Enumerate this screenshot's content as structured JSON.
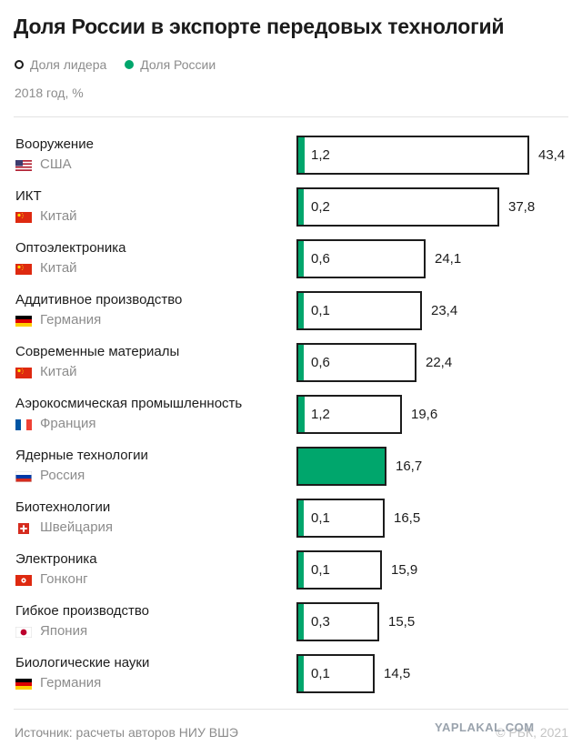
{
  "title": "Доля России в экспорте передовых технологий",
  "legend": {
    "leader": "Доля лидера",
    "russia": "Доля России"
  },
  "subtitle": "2018 год, %",
  "source": "Источник: расчеты авторов НИУ ВШЭ",
  "credit": "© РБК, 2021",
  "watermark": "YAPLAKAL.COM",
  "colors": {
    "russia": "#00a66c",
    "leader_outline": "#1c1c1c"
  },
  "chart_data": {
    "type": "bar",
    "orientation": "horizontal",
    "title": "Доля России в экспорте передовых технологий",
    "subtitle": "2018 год, %",
    "grid": false,
    "legend_position": "top-left",
    "categories": [
      "Вооружение",
      "ИКТ",
      "Оптоэлектроника",
      "Аддитивное производство",
      "Современные материалы",
      "Аэрокосмическая промышленность",
      "Ядерные технологии",
      "Биотехнологии",
      "Электроника",
      "Гибкое производство",
      "Биологические науки"
    ],
    "rows": [
      {
        "category": "Вооружение",
        "leader": "США",
        "flag": "us-flag-icon",
        "leader_label": "43,4",
        "russia_label": "1,2"
      },
      {
        "category": "ИКТ",
        "leader": "Китай",
        "flag": "cn-flag-icon",
        "leader_label": "37,8",
        "russia_label": "0,2"
      },
      {
        "category": "Оптоэлектроника",
        "leader": "Китай",
        "flag": "cn-flag-icon",
        "leader_label": "24,1",
        "russia_label": "0,6"
      },
      {
        "category": "Аддитивное производство",
        "leader": "Германия",
        "flag": "de-flag-icon",
        "leader_label": "23,4",
        "russia_label": "0,1"
      },
      {
        "category": "Современные материалы",
        "leader": "Китай",
        "flag": "cn-flag-icon",
        "leader_label": "22,4",
        "russia_label": "0,6"
      },
      {
        "category": "Аэрокосмическая промышленность",
        "leader": "Франция",
        "flag": "fr-flag-icon",
        "leader_label": "19,6",
        "russia_label": "1,2"
      },
      {
        "category": "Ядерные технологии",
        "leader": "Россия",
        "flag": "ru-flag-icon",
        "leader_label": "16,7",
        "russia_label": ""
      },
      {
        "category": "Биотехнологии",
        "leader": "Швейцария",
        "flag": "ch-flag-icon",
        "leader_label": "16,5",
        "russia_label": "0,1"
      },
      {
        "category": "Электроника",
        "leader": "Гонконг",
        "flag": "hk-flag-icon",
        "leader_label": "15,9",
        "russia_label": "0,1"
      },
      {
        "category": "Гибкое производство",
        "leader": "Япония",
        "flag": "jp-flag-icon",
        "leader_label": "15,5",
        "russia_label": "0,3"
      },
      {
        "category": "Биологические науки",
        "leader": "Германия",
        "flag": "de-flag-icon",
        "leader_label": "14,5",
        "russia_label": "0,1"
      }
    ],
    "series": [
      {
        "name": "Доля лидера",
        "values": [
          43.4,
          37.8,
          24.1,
          23.4,
          22.4,
          19.6,
          16.7,
          16.5,
          15.9,
          15.5,
          14.5
        ]
      },
      {
        "name": "Доля России",
        "values": [
          1.2,
          0.2,
          0.6,
          0.1,
          0.6,
          1.2,
          16.7,
          0.1,
          0.1,
          0.3,
          0.1
        ]
      }
    ],
    "xlim": [
      0,
      43.4
    ]
  }
}
